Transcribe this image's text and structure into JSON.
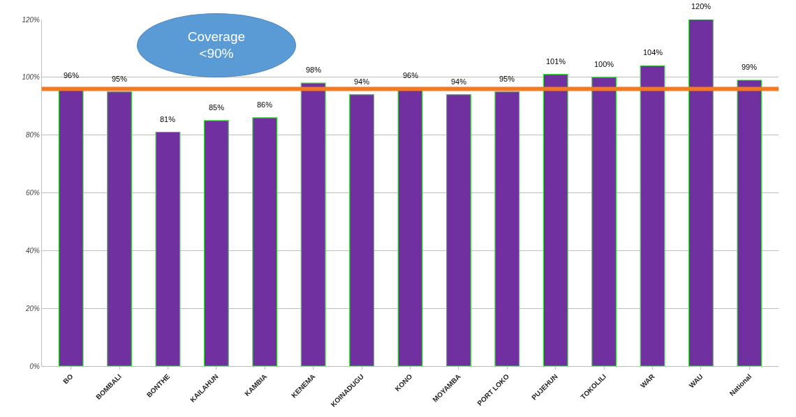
{
  "chart_data": {
    "type": "bar",
    "categories": [
      "BO",
      "BOMBALI",
      "BONTHE",
      "KAILAHUN",
      "KAMBIA",
      "KENEMA",
      "KOINADUGU",
      "KONO",
      "MOYAMBA",
      "PORT LOKO",
      "PUJEHUN",
      "TOKOLILI",
      "WAR",
      "WAU",
      "National"
    ],
    "values": [
      96,
      95,
      81,
      85,
      86,
      98,
      94,
      96,
      94,
      95,
      101,
      100,
      104,
      120,
      99
    ],
    "value_labels": [
      "96%",
      "95%",
      "81%",
      "85%",
      "86%",
      "98%",
      "94%",
      "96%",
      "94%",
      "95%",
      "101%",
      "100%",
      "104%",
      "120%",
      "99%"
    ],
    "color": "#7030a0",
    "ylim": [
      0,
      120
    ],
    "yticks": [
      {
        "value": 0,
        "label": "0%"
      },
      {
        "value": 20,
        "label": "20%"
      },
      {
        "value": 40,
        "label": "40%"
      },
      {
        "value": 60,
        "label": "60%"
      },
      {
        "value": 80,
        "label": "80%"
      },
      {
        "value": 100,
        "label": "100%"
      },
      {
        "value": 120,
        "label": "120%"
      }
    ],
    "grid": "y",
    "ref_lines": [
      {
        "axis": "y",
        "value": 96,
        "color": "#f47920"
      }
    ],
    "annotations": [
      "Coverage <90%"
    ]
  }
}
